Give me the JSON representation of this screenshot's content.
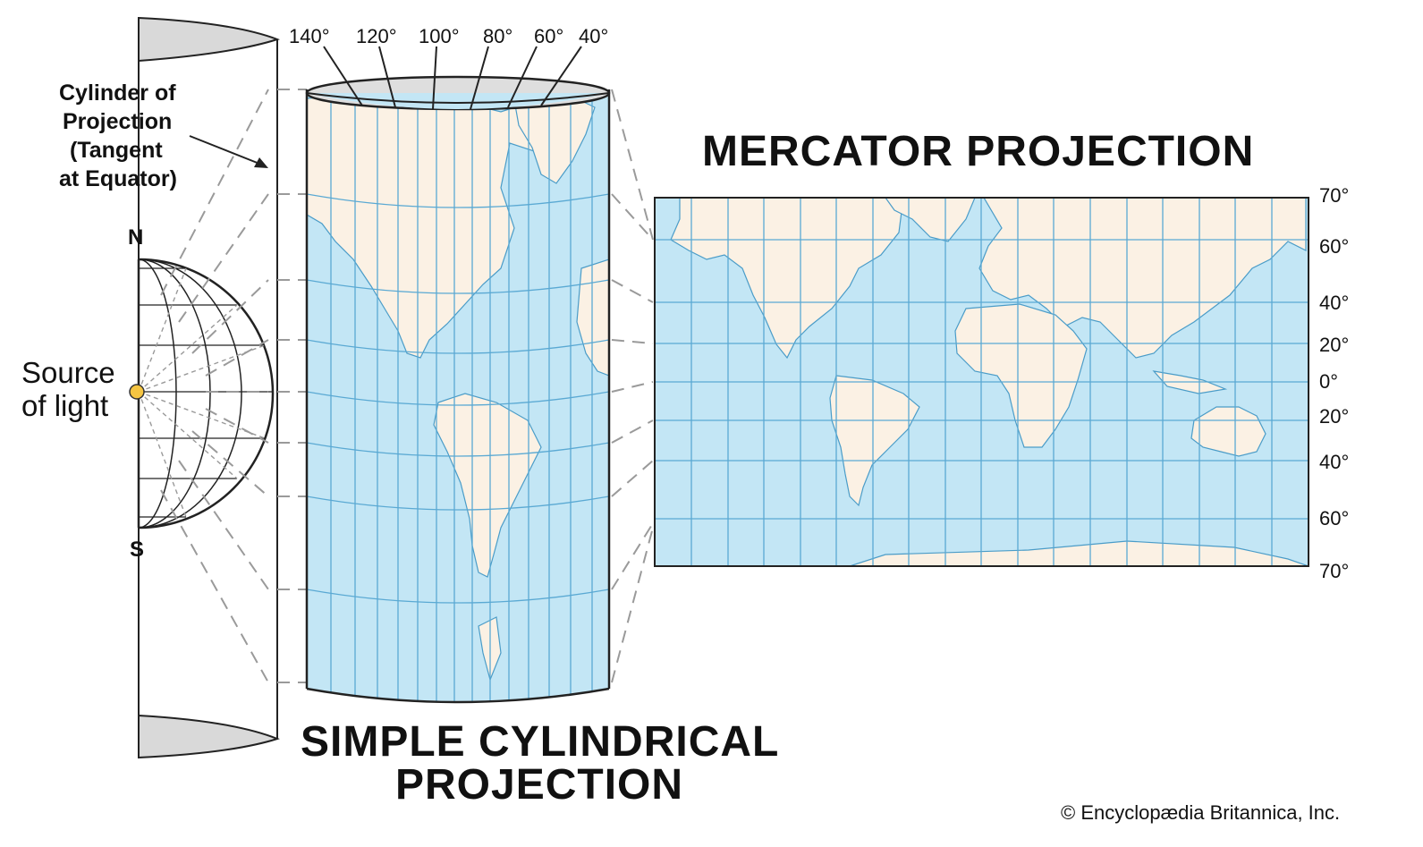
{
  "cylinder_label": [
    "Cylinder of",
    "Projection",
    "(Tangent",
    "at Equator)"
  ],
  "poles": {
    "north": "N",
    "south": "S"
  },
  "light_source": [
    "Source",
    "of light"
  ],
  "longitude_labels": [
    "140°",
    "120°",
    "100°",
    "80°",
    "60°",
    "40°"
  ],
  "mercator_title": "MERCATOR PROJECTION",
  "simple_title": [
    "SIMPLE CYLINDRICAL",
    "PROJECTION"
  ],
  "latitude_labels": [
    "70°",
    "60°",
    "40°",
    "20°",
    "0°",
    "20°",
    "40°",
    "60°",
    "70°"
  ],
  "copyright": "© Encyclopædia Britannica, Inc.",
  "colors": {
    "ocean": "#c3e6f5",
    "land": "#fbf1e4",
    "grid": "#5aa9d3",
    "light": "#f5c542",
    "cylinder_shade": "#d9d9d9"
  }
}
